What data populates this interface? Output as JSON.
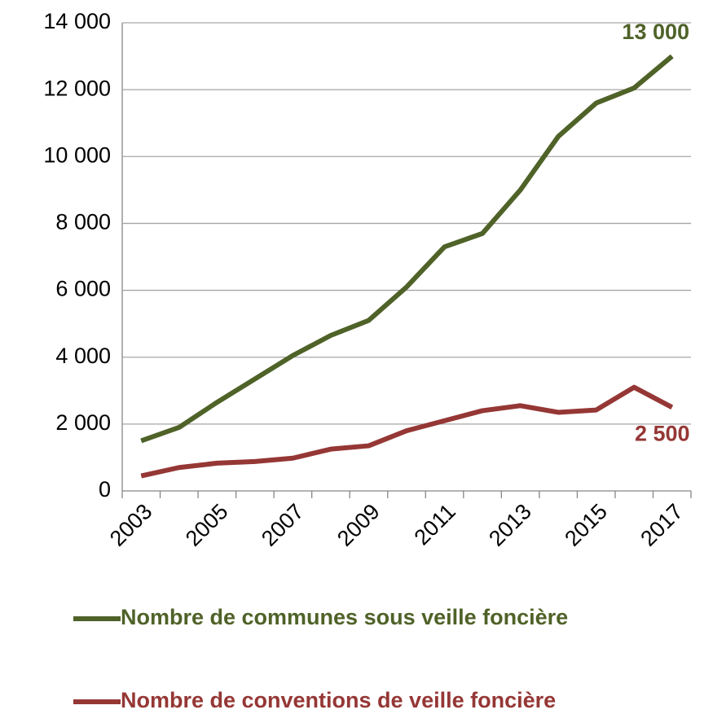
{
  "chart_data": {
    "type": "line",
    "categories": [
      "2003",
      null,
      "2005",
      null,
      "2007",
      null,
      "2009",
      null,
      "2011",
      null,
      "2013",
      null,
      "2015",
      null,
      "2017"
    ],
    "series": [
      {
        "name": "Nombre de communes sous veille foncière",
        "color": "#4f6228",
        "values": [
          1500,
          1900,
          2650,
          3350,
          4050,
          4650,
          5100,
          6100,
          7300,
          7700,
          9000,
          10600,
          11600,
          12050,
          13000
        ],
        "value_labels": [
          null,
          null,
          null,
          null,
          null,
          null,
          null,
          null,
          null,
          null,
          null,
          null,
          null,
          null,
          "13 000"
        ]
      },
      {
        "name": "Nombre de conventions de veille foncière",
        "color": "#953735",
        "values": [
          450,
          700,
          830,
          880,
          980,
          1250,
          1350,
          1800,
          2100,
          2400,
          2550,
          2350,
          2420,
          3100,
          2500
        ],
        "value_labels": [
          null,
          null,
          null,
          null,
          null,
          null,
          null,
          null,
          null,
          null,
          null,
          null,
          null,
          null,
          "2 500"
        ]
      }
    ],
    "ylim": [
      0,
      14000
    ],
    "yticks": [
      0,
      {
        "value": 2000,
        "label": "2 000"
      },
      {
        "value": 4000,
        "label": "4 000"
      },
      {
        "value": 6000,
        "label": "6 000"
      },
      {
        "value": 8000,
        "label": "8 000"
      },
      {
        "value": 10000,
        "label": "10 000"
      },
      {
        "value": 12000,
        "label": "12 000"
      },
      {
        "value": 14000,
        "label": "14 000"
      }
    ],
    "grid": true,
    "legend": "bottom"
  }
}
